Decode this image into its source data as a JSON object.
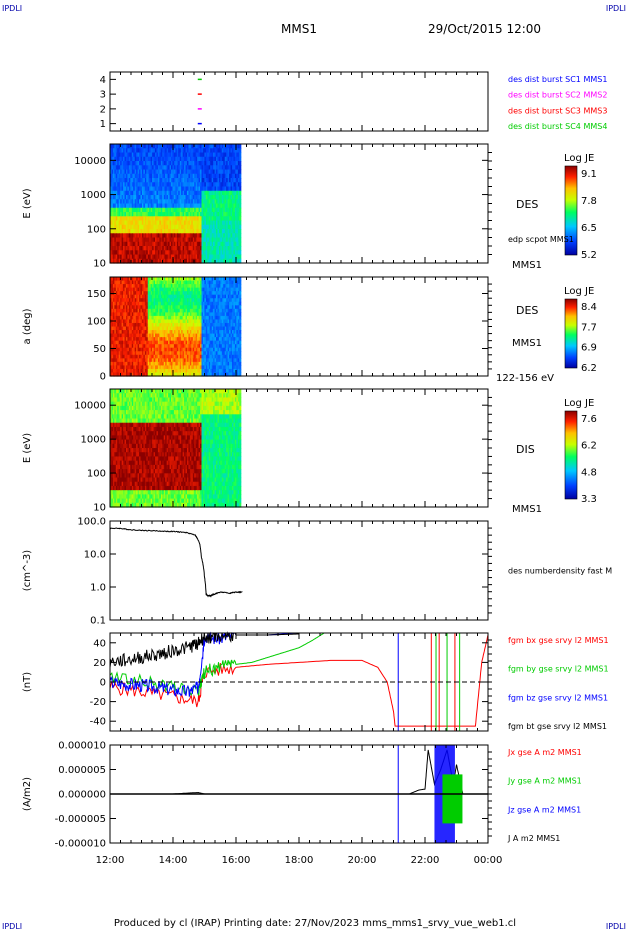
{
  "corner_labels": [
    "IPDLI",
    "IPDLI",
    "IPDLI",
    "IPDLI"
  ],
  "header": {
    "title": "MMS1",
    "datetime": "29/Oct/2015 12:00"
  },
  "footer": "Produced by cl (IRAP)   Printing date: 27/Nov/2023   mms_mms1_srvy_vue_web1.cl",
  "colors": {
    "blue": "#0000ff",
    "magenta": "#ff00ff",
    "red": "#ff0000",
    "green": "#00cc00",
    "black": "#000000"
  },
  "time_axis": {
    "ticks": [
      "12:00",
      "14:00",
      "16:00",
      "18:00",
      "20:00",
      "22:00",
      "00:00"
    ],
    "range_hours": [
      12,
      24
    ]
  },
  "chart_data": [
    {
      "type": "scatter",
      "panel": "burst-availability",
      "yticks": [
        "4",
        "3",
        "2",
        "1"
      ],
      "ylim": [
        0.5,
        4.5
      ],
      "markers": [
        {
          "sc": 4,
          "t": 14.85,
          "color": "#00cc00"
        },
        {
          "sc": 3,
          "t": 14.85,
          "color": "#ff0000"
        },
        {
          "sc": 2,
          "t": 14.85,
          "color": "#ff00ff"
        },
        {
          "sc": 1,
          "t": 14.85,
          "color": "#0000ff"
        }
      ],
      "legend": [
        {
          "text": "des dist burst SC1 MMS1",
          "color": "#0000ff"
        },
        {
          "text": "des dist burst SC2 MMS2",
          "color": "#ff00ff"
        },
        {
          "text": "des dist burst SC3 MMS3",
          "color": "#ff0000"
        },
        {
          "text": "des dist burst SC4 MMS4",
          "color": "#00cc00"
        }
      ]
    },
    {
      "type": "heatmap",
      "panel": "des-energy",
      "ylabel": "E (eV)",
      "yscale": "log",
      "ylim": [
        10,
        30000
      ],
      "yticks": [
        "10000",
        "1000",
        "100",
        "10"
      ],
      "right_labels": [
        "DES",
        "edp scpot MMS1",
        "MMS1"
      ],
      "colorbar": {
        "title": "Log JE",
        "ticks": [
          "9.1",
          "7.8",
          "6.5",
          "5.2"
        ]
      },
      "data_end_hour": 16.15
    },
    {
      "type": "heatmap",
      "panel": "des-pitch",
      "ylabel": "a (deg)",
      "ylim": [
        0,
        180
      ],
      "yticks": [
        "150",
        "100",
        "50",
        "0"
      ],
      "right_labels": [
        "DES",
        "MMS1",
        "122-156 eV"
      ],
      "colorbar": {
        "title": "Log JE",
        "ticks": [
          "8.4",
          "7.7",
          "6.9",
          "6.2"
        ]
      },
      "data_end_hour": 16.15
    },
    {
      "type": "heatmap",
      "panel": "dis-energy",
      "ylabel": "E (eV)",
      "yscale": "log",
      "ylim": [
        10,
        30000
      ],
      "yticks": [
        "10000",
        "1000",
        "100",
        "10"
      ],
      "right_labels": [
        "DIS",
        "MMS1"
      ],
      "colorbar": {
        "title": "Log JE",
        "ticks": [
          "7.6",
          "6.2",
          "4.8",
          "3.3"
        ]
      },
      "data_end_hour": 16.15
    },
    {
      "type": "line",
      "panel": "density",
      "ylabel": "(cm^-3)",
      "yscale": "log",
      "ylim": [
        0.1,
        100
      ],
      "yticks": [
        "100.0",
        "10.0",
        "1.0",
        "0.1"
      ],
      "legend": [
        {
          "text": "des numberdensity fast M",
          "color": "#000000"
        }
      ],
      "series": [
        {
          "name": "des numberdensity fast M",
          "color": "#000000",
          "x": [
            12.0,
            12.3,
            12.6,
            13.0,
            13.5,
            14.0,
            14.4,
            14.7,
            14.85,
            14.9,
            15.0,
            15.05,
            15.1,
            15.2,
            15.3,
            15.5,
            15.8,
            16.0,
            16.2
          ],
          "y": [
            60,
            60,
            55,
            52,
            50,
            48,
            45,
            38,
            20,
            8,
            2,
            0.6,
            0.55,
            0.55,
            0.6,
            0.7,
            0.65,
            0.7,
            0.7
          ]
        }
      ]
    },
    {
      "type": "line",
      "panel": "magnetic-field",
      "ylabel": "(nT)",
      "ylim": [
        -50,
        50
      ],
      "yticks": [
        "40",
        "20",
        "0",
        "-20",
        "-40"
      ],
      "legend": [
        {
          "text": "fgm bx gse srvy l2 MMS1",
          "color": "#ff0000"
        },
        {
          "text": "fgm by gse srvy l2 MMS1",
          "color": "#00cc00"
        },
        {
          "text": "fgm bz gse srvy l2 MMS1",
          "color": "#0000ff"
        },
        {
          "text": "fgm bt gse srvy l2 MMS1",
          "color": "#000000"
        }
      ],
      "series": [
        {
          "name": "fgm bx gse srvy l2 MMS1",
          "color": "#ff0000",
          "x": [
            12.0,
            13.0,
            14.0,
            14.8,
            15.0,
            16.0,
            17.0,
            18.0,
            19.0,
            20.0,
            20.5,
            20.8,
            21.0,
            21.05,
            23.6,
            23.8,
            24.0
          ],
          "y": [
            -5,
            -10,
            -15,
            -20,
            10,
            15,
            18,
            20,
            22,
            22,
            15,
            0,
            -30,
            -45,
            -45,
            20,
            48
          ]
        },
        {
          "name": "fgm by gse srvy l2 MMS1",
          "color": "#00cc00",
          "x": [
            12.0,
            13.0,
            14.0,
            14.8,
            15.0,
            15.5,
            16.0,
            16.5,
            17.0,
            17.5,
            18.0,
            18.4,
            18.8
          ],
          "y": [
            5,
            0,
            -5,
            -10,
            10,
            15,
            18,
            20,
            25,
            30,
            35,
            42,
            50
          ]
        },
        {
          "name": "fgm bz gse srvy l2 MMS1",
          "color": "#0000ff",
          "x": [
            12.0,
            12.5,
            13.0,
            13.5,
            14.0,
            14.5,
            14.8,
            15.0,
            15.5,
            16.0,
            17.0,
            18.0
          ],
          "y": [
            0,
            -2,
            -3,
            -5,
            -8,
            -10,
            -5,
            45,
            45,
            48,
            48,
            50
          ]
        },
        {
          "name": "fgm bt gse srvy l2 MMS1",
          "color": "#000000",
          "x": [
            12.0,
            12.5,
            13.0,
            13.5,
            14.0,
            14.5,
            14.8,
            15.0,
            15.5,
            16.0,
            17.0,
            18.0
          ],
          "y": [
            20,
            22,
            25,
            28,
            32,
            35,
            40,
            46,
            47,
            48,
            48,
            49
          ]
        }
      ],
      "vertical_lines": [
        {
          "t": 21.15,
          "color": "#0000ff"
        },
        {
          "t": 22.2,
          "color": "#ff0000"
        },
        {
          "t": 22.35,
          "color": "#00cc00"
        },
        {
          "t": 22.45,
          "color": "#ff0000"
        },
        {
          "t": 22.7,
          "color": "#00cc00"
        },
        {
          "t": 22.95,
          "color": "#ff0000"
        },
        {
          "t": 23.1,
          "color": "#00cc00"
        }
      ]
    },
    {
      "type": "line",
      "panel": "current-density",
      "ylabel": "(A/m2)",
      "ylim": [
        -1e-05,
        1e-05
      ],
      "yticks": [
        "0.000010",
        "0.000005",
        "0.000000",
        "-0.000005",
        "-0.000010"
      ],
      "legend": [
        {
          "text": "Jx gse A m2 MMS1",
          "color": "#ff0000"
        },
        {
          "text": "Jy gse A m2 MMS1",
          "color": "#00cc00"
        },
        {
          "text": "Jz gse A m2 MMS1",
          "color": "#0000ff"
        },
        {
          "text": "J A m2 MMS1",
          "color": "#000000"
        }
      ],
      "series": [
        {
          "name": "J A m2 MMS1",
          "color": "#000000",
          "x": [
            12.0,
            14.0,
            14.5,
            14.8,
            15.0,
            16.0,
            18.0,
            20.0,
            21.5,
            21.8,
            22.0,
            22.1,
            22.3,
            22.5,
            22.7,
            22.9,
            23.0,
            23.2,
            24.0
          ],
          "y": [
            0,
            0,
            2e-07,
            3e-07,
            0,
            0,
            0,
            0,
            0,
            8e-07,
            1e-06,
            9e-06,
            2e-06,
            5e-06,
            9e-06,
            2e-06,
            6e-06,
            0,
            0
          ]
        }
      ],
      "burst_window_hours": [
        22.3,
        22.95
      ]
    }
  ]
}
